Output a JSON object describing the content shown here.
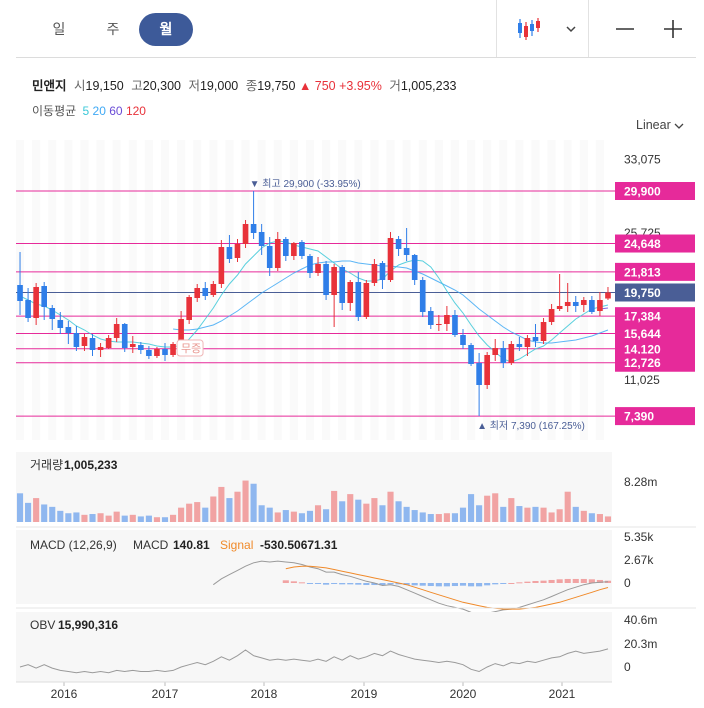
{
  "period_tabs": [
    {
      "label": "일",
      "active": false
    },
    {
      "label": "주",
      "active": false
    },
    {
      "label": "월",
      "active": true
    }
  ],
  "toolbar": {
    "chart_type_icon": "candlestick-icon",
    "dropdown_icon": "chevron-down-icon",
    "zoom_out_icon": "minus-icon",
    "zoom_in_icon": "plus-icon"
  },
  "info": {
    "name": "민앤지",
    "open_label": "시",
    "open": "19,150",
    "high_label": "고",
    "high": "20,300",
    "low_label": "저",
    "low": "19,000",
    "close_label": "종",
    "close": "19,750",
    "change": "▲ 750 +3.95%",
    "volume_label": "거",
    "volume": "1,005,233"
  },
  "ma_legend": {
    "label": "이동평균",
    "periods": [
      "5",
      "20",
      "60",
      "120"
    ],
    "colors": [
      "#3cc8d8",
      "#3fa9f5",
      "#6a4cd6",
      "#e8323a"
    ]
  },
  "scale_label": "Linear",
  "colors": {
    "up": "#e8323a",
    "down": "#2f7ee8",
    "level": "#e62a9a",
    "current": "#4a5e96"
  },
  "chart_data": {
    "type": "candlestick",
    "period": "monthly",
    "x_axis_labels": [
      "2016",
      "2017",
      "2018",
      "2019",
      "2020",
      "2021"
    ],
    "y_axis_ticks": [
      "33,075",
      "25,725",
      "11,025"
    ],
    "ylim": [
      5000,
      35000
    ],
    "level_labels": [
      "29,900",
      "24,648",
      "21,813",
      "19,750",
      "17,384",
      "15,644",
      "14,120",
      "12,726",
      "7,390"
    ],
    "level_values": [
      29900,
      24648,
      21813,
      19750,
      17384,
      15644,
      14120,
      12726,
      7390
    ],
    "current_price": 19750,
    "annotations": {
      "high": "▼ 최고 29,900 (-33.95%)",
      "low": "▲ 최저 7,390 (167.25%)",
      "tag": "무증"
    },
    "candles": [
      [
        20500,
        23800,
        17500,
        18900
      ],
      [
        19000,
        20200,
        16800,
        17200
      ],
      [
        17200,
        20700,
        16500,
        20300
      ],
      [
        20400,
        20800,
        17000,
        18300
      ],
      [
        18200,
        18500,
        16000,
        17100
      ],
      [
        17000,
        17800,
        15600,
        16200
      ],
      [
        16300,
        16900,
        14600,
        15700
      ],
      [
        15700,
        16400,
        13900,
        14300
      ],
      [
        14400,
        15600,
        13900,
        15300
      ],
      [
        15200,
        15600,
        13400,
        14000
      ],
      [
        14000,
        14700,
        13300,
        14300
      ],
      [
        14200,
        15500,
        14100,
        15200
      ],
      [
        15200,
        17200,
        14800,
        16600
      ],
      [
        16600,
        16700,
        13800,
        14200
      ],
      [
        14300,
        15400,
        13700,
        14600
      ],
      [
        14500,
        14800,
        13600,
        14000
      ],
      [
        14000,
        14400,
        13100,
        13400
      ],
      [
        13400,
        14300,
        13200,
        14100
      ],
      [
        14100,
        14700,
        12900,
        13500
      ],
      [
        13500,
        14800,
        13300,
        14600
      ],
      [
        14600,
        17900,
        14300,
        17100
      ],
      [
        17000,
        19500,
        16600,
        19300
      ],
      [
        19200,
        20600,
        18800,
        20200
      ],
      [
        20200,
        20800,
        19000,
        19400
      ],
      [
        19500,
        20900,
        19300,
        20600
      ],
      [
        20600,
        25000,
        20200,
        24300
      ],
      [
        24300,
        25500,
        22700,
        23100
      ],
      [
        23200,
        25100,
        22800,
        24600
      ],
      [
        24600,
        27000,
        24200,
        26600
      ],
      [
        26600,
        29900,
        25100,
        25700
      ],
      [
        25800,
        26600,
        23500,
        24400
      ],
      [
        24400,
        25300,
        21400,
        22200
      ],
      [
        22200,
        25800,
        21900,
        25100
      ],
      [
        25100,
        25300,
        22900,
        23400
      ],
      [
        23400,
        24800,
        23000,
        24700
      ],
      [
        24800,
        25000,
        23100,
        23400
      ],
      [
        23400,
        23600,
        21200,
        21700
      ],
      [
        21700,
        23300,
        21400,
        22600
      ],
      [
        22600,
        22900,
        19000,
        19500
      ],
      [
        19500,
        22600,
        16300,
        22300
      ],
      [
        22300,
        22500,
        18000,
        18700
      ],
      [
        18700,
        21000,
        17900,
        20800
      ],
      [
        20800,
        21800,
        16900,
        17300
      ],
      [
        17300,
        21000,
        17100,
        20700
      ],
      [
        20700,
        23100,
        20400,
        22600
      ],
      [
        22700,
        22900,
        20100,
        21000
      ],
      [
        21000,
        25800,
        20800,
        25200
      ],
      [
        25100,
        25400,
        23400,
        24100
      ],
      [
        24200,
        26200,
        22900,
        23500
      ],
      [
        23500,
        23600,
        20500,
        21000
      ],
      [
        21000,
        21300,
        17300,
        17800
      ],
      [
        17900,
        18300,
        16100,
        16500
      ],
      [
        16500,
        17500,
        15900,
        16600
      ],
      [
        16600,
        18400,
        15900,
        17500
      ],
      [
        17500,
        18000,
        15300,
        15500
      ],
      [
        15500,
        16100,
        14100,
        14500
      ],
      [
        14500,
        14700,
        12400,
        12600
      ],
      [
        12700,
        13700,
        7390,
        10500
      ],
      [
        10500,
        13800,
        10100,
        13500
      ],
      [
        13500,
        15100,
        12900,
        14200
      ],
      [
        14200,
        14900,
        12200,
        12700
      ],
      [
        12700,
        14900,
        12500,
        14600
      ],
      [
        14600,
        15300,
        13900,
        14300
      ],
      [
        14300,
        15500,
        13400,
        15200
      ],
      [
        15300,
        16600,
        14300,
        14900
      ],
      [
        14900,
        17200,
        14600,
        16800
      ],
      [
        16800,
        18600,
        16500,
        18100
      ],
      [
        18100,
        21600,
        17900,
        18400
      ],
      [
        18400,
        20700,
        17800,
        18800
      ],
      [
        18800,
        19400,
        17800,
        18400
      ],
      [
        18500,
        19300,
        17800,
        19000
      ],
      [
        19000,
        19400,
        17600,
        17800
      ],
      [
        17900,
        19800,
        17400,
        19000
      ],
      [
        19150,
        20300,
        19000,
        19750
      ]
    ],
    "ma5": [
      19400,
      19000,
      18600,
      18400,
      18000,
      17500,
      17000,
      16400,
      16000,
      15500,
      15100,
      14900,
      14800,
      14800,
      14800,
      14700,
      14600,
      14400,
      14300,
      14300,
      14500,
      15100,
      16000,
      17100,
      18200,
      19500,
      20600,
      21500,
      22600,
      23400,
      24200,
      24700,
      24900,
      24800,
      24500,
      24300,
      24100,
      23900,
      23300,
      22700,
      22100,
      21700,
      21200,
      20900,
      20900,
      21100,
      21900,
      22500,
      22800,
      23000,
      22900,
      22300,
      21200,
      19900,
      18700,
      17700,
      16500,
      15400,
      14500,
      13800,
      13100,
      12800,
      13100,
      13600,
      14100,
      14400,
      15000,
      15700,
      16400,
      17100,
      17600,
      18100,
      18300,
      18500
    ],
    "ma20": [
      null,
      null,
      null,
      null,
      null,
      null,
      null,
      null,
      null,
      null,
      null,
      null,
      null,
      null,
      null,
      null,
      null,
      null,
      null,
      16100,
      16000,
      16000,
      16100,
      16300,
      16500,
      16900,
      17400,
      17900,
      18500,
      19100,
      19700,
      20200,
      20700,
      21200,
      21700,
      22100,
      22500,
      22700,
      22800,
      22800,
      22900,
      22900,
      22700,
      22600,
      22500,
      22400,
      22400,
      22300,
      22200,
      21900,
      21600,
      21200,
      20800,
      20400,
      20000,
      19500,
      18800,
      18100,
      17500,
      16900,
      16300,
      15800,
      15400,
      15000,
      14800,
      14700,
      14700,
      14800,
      14900,
      15000,
      15200,
      15400,
      15700,
      16000
    ],
    "ma60": [
      null,
      null,
      null,
      null,
      null,
      null,
      null,
      null,
      null,
      null,
      null,
      null,
      null,
      null,
      null,
      null,
      null,
      null,
      null,
      null,
      null,
      null,
      null,
      null,
      null,
      null,
      null,
      null,
      null,
      null,
      null,
      null,
      null,
      null,
      null,
      null,
      null,
      null,
      null,
      null,
      null,
      null,
      null,
      null,
      null,
      null,
      null,
      null,
      null,
      null,
      null,
      null,
      null,
      null,
      null,
      null,
      null,
      null,
      null,
      null,
      null,
      null,
      null,
      null,
      null,
      null,
      null,
      null,
      null,
      null,
      null,
      null,
      18100,
      18200
    ],
    "ma120": [],
    "volume": {
      "label": "거래량",
      "value": "1,005,233",
      "axis_label": "8.28m",
      "values": [
        3.6,
        2.4,
        3.0,
        2.2,
        1.9,
        1.4,
        1.1,
        1.2,
        0.9,
        1.0,
        1.1,
        0.8,
        1.3,
        0.8,
        0.9,
        0.7,
        0.8,
        0.6,
        0.6,
        0.9,
        1.8,
        2.3,
        2.5,
        1.8,
        3.2,
        4.4,
        3.0,
        3.8,
        5.2,
        4.8,
        2.1,
        1.8,
        1.2,
        1.5,
        1.3,
        1.1,
        1.4,
        2.1,
        1.6,
        3.9,
        2.6,
        3.5,
        2.8,
        2.3,
        3.0,
        2.1,
        3.8,
        2.6,
        1.9,
        1.5,
        1.2,
        1.0,
        1.0,
        1.1,
        1.1,
        1.8,
        3.5,
        2.1,
        3.3,
        3.6,
        1.9,
        3.0,
        2.0,
        1.8,
        1.9,
        1.8,
        1.2,
        1.6,
        3.8,
        1.9,
        1.4,
        1.1,
        1.0,
        0.7
      ]
    },
    "macd": {
      "label": "MACD (12,26,9)",
      "macd_label": "MACD",
      "macd_value": "140.81",
      "signal_label": "Signal",
      "signal_value": "-530.50671.31",
      "axis_labels": [
        "5.35k",
        "2.67k",
        "0"
      ],
      "macd_values": [
        null,
        null,
        null,
        null,
        null,
        null,
        null,
        null,
        null,
        null,
        null,
        null,
        null,
        null,
        null,
        null,
        null,
        null,
        null,
        null,
        null,
        null,
        null,
        null,
        -200,
        500,
        1000,
        1500,
        2000,
        2400,
        2600,
        2500,
        2600,
        2500,
        2400,
        2200,
        1900,
        1700,
        1300,
        1300,
        1000,
        800,
        500,
        200,
        0,
        -300,
        -200,
        -400,
        -800,
        -1200,
        -1600,
        -2000,
        -2400,
        -2700,
        -2900,
        -3100,
        -3500,
        -3700,
        -3600,
        -3400,
        -3200,
        -3100,
        -2900,
        -2600,
        -2300,
        -2000,
        -1600,
        -1200,
        -800,
        -500,
        -200,
        0,
        100,
        141
      ],
      "signal_values": [
        null,
        null,
        null,
        null,
        null,
        null,
        null,
        null,
        null,
        null,
        null,
        null,
        null,
        null,
        null,
        null,
        null,
        null,
        null,
        null,
        null,
        null,
        null,
        null,
        null,
        null,
        null,
        null,
        null,
        null,
        null,
        null,
        null,
        1700,
        1900,
        2000,
        2000,
        1900,
        1800,
        1600,
        1400,
        1200,
        1000,
        800,
        600,
        400,
        200,
        0,
        -200,
        -500,
        -800,
        -1100,
        -1400,
        -1700,
        -2000,
        -2300,
        -2500,
        -2700,
        -2900,
        -3000,
        -3100,
        -3100,
        -3100,
        -3000,
        -2900,
        -2700,
        -2500,
        -2300,
        -2000,
        -1700,
        -1400,
        -1100,
        -800,
        -531
      ]
    },
    "obv": {
      "label": "OBV",
      "value": "15,990,316",
      "axis_labels": [
        "40.6m",
        "20.3m",
        "0"
      ],
      "values": [
        0,
        2,
        -1,
        2,
        -1,
        -3,
        -4,
        -5,
        -4,
        -5,
        -4,
        -5,
        -3,
        -4,
        -3,
        -4,
        -4,
        -3,
        -4,
        -3,
        0,
        2,
        4,
        2,
        5,
        9,
        6,
        10,
        15,
        10,
        8,
        6,
        7,
        6,
        7,
        6,
        5,
        7,
        5,
        9,
        6,
        10,
        7,
        9,
        12,
        10,
        14,
        11,
        9,
        7,
        6,
        5,
        4,
        5,
        4,
        2,
        -2,
        -4,
        0,
        3,
        1,
        4,
        3,
        5,
        4,
        6,
        8,
        9,
        12,
        14,
        12,
        13,
        14,
        16
      ]
    }
  }
}
